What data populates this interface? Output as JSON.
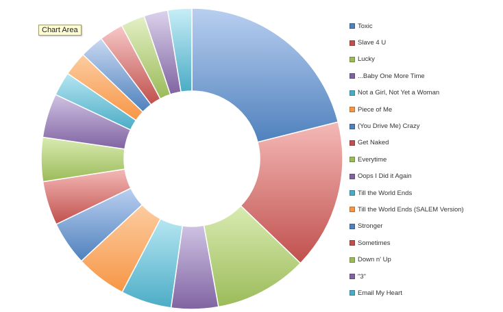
{
  "tooltip": {
    "text": "Chart Area"
  },
  "chart_data": {
    "type": "pie",
    "hole": 0.45,
    "legend_position": "right",
    "categories": [
      "Toxic",
      "Slave 4 U",
      "Lucky",
      "...Baby One More Time",
      "Not a Girl, Not Yet a Woman",
      "Piece of Me",
      "(You Drive Me) Crazy",
      "Get Naked",
      "Everytime",
      "Oops I Did it Again",
      "Till the World Ends",
      "Till the World Ends (SALEM Version)",
      "Stronger",
      "Sometimes",
      "Down n' Up",
      "\"3\"",
      "Email My Heart"
    ],
    "values": [
      20.5,
      15.7,
      9.7,
      4.9,
      5.3,
      5.3,
      4.6,
      4.6,
      4.6,
      4.6,
      2.5,
      2.5,
      2.5,
      2.5,
      2.5,
      2.5,
      2.5
    ],
    "colors": [
      "#4f81bd",
      "#c0504d",
      "#9bbb59",
      "#8064a2",
      "#4bacc6",
      "#f79646",
      "#4f81bd",
      "#c0504d",
      "#9bbb59",
      "#8064a2",
      "#4bacc6",
      "#f79646",
      "#4f81bd",
      "#c0504d",
      "#9bbb59",
      "#8064a2",
      "#4bacc6"
    ],
    "light_colors": [
      "#b9cff0",
      "#f4b9b7",
      "#d9ebb2",
      "#cfc2e3",
      "#b6e6f2",
      "#fccca1",
      "#b9cff0",
      "#f4b9b7",
      "#d9ebb2",
      "#cfc2e3",
      "#b6e6f2",
      "#fccca1",
      "#c9d9f2",
      "#f7c9c8",
      "#e3f0c6",
      "#dcd3ec",
      "#c8eef7"
    ]
  }
}
